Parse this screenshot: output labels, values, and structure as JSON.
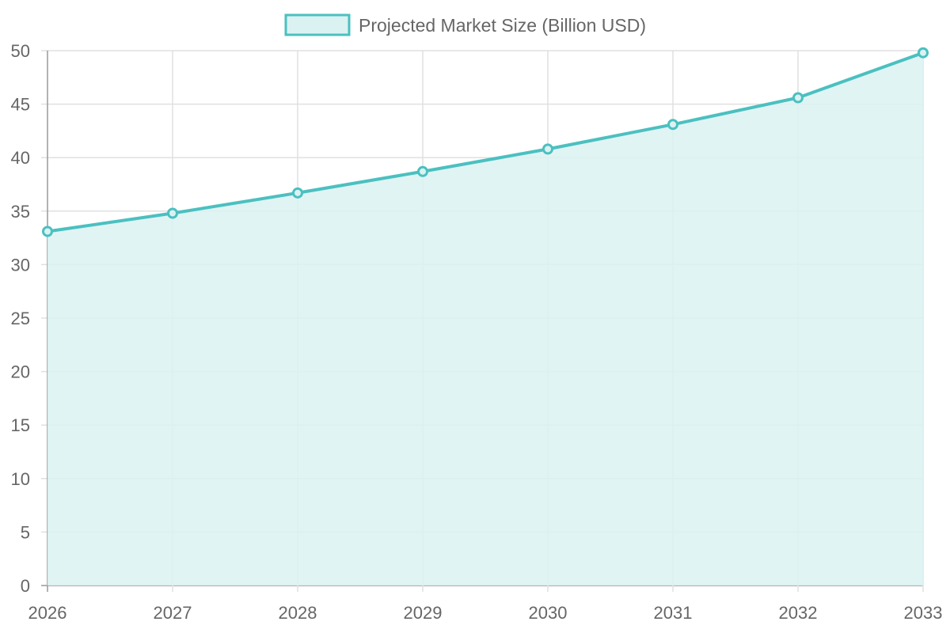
{
  "chart_data": {
    "type": "area",
    "title": "",
    "xlabel": "",
    "ylabel": "",
    "categories": [
      "2026",
      "2027",
      "2028",
      "2029",
      "2030",
      "2031",
      "2032",
      "2033"
    ],
    "series": [
      {
        "name": "Projected Market Size (Billion USD)",
        "values": [
          33.1,
          34.8,
          36.7,
          38.7,
          40.8,
          43.1,
          45.6,
          49.8
        ]
      }
    ],
    "ylim": [
      0,
      50
    ],
    "yticks": [
      "0",
      "5",
      "10",
      "15",
      "20",
      "25",
      "30",
      "35",
      "40",
      "45",
      "50"
    ],
    "grid": true,
    "legend_position": "top",
    "colors": {
      "line": "#4bc0c0",
      "fill": "#dbf2f2",
      "grid": "#e0e0e0",
      "axis": "#999999"
    }
  }
}
